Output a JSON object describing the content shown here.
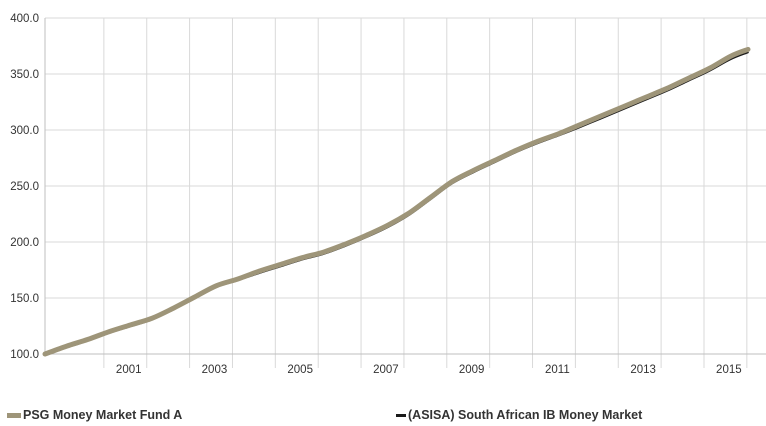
{
  "chart_data": {
    "type": "line",
    "x_ticks": [
      "2001",
      "2003",
      "2005",
      "2007",
      "2009",
      "2011",
      "2013",
      "2015"
    ],
    "y_ticks": [
      "100.0",
      "150.0",
      "200.0",
      "250.0",
      "300.0",
      "350.0",
      "400.0"
    ],
    "ylim": [
      100,
      400
    ],
    "xlim": [
      1999.0,
      2015.4
    ],
    "grid": "on",
    "legend_position": "bottom",
    "series": [
      {
        "name": "PSG Money Market Fund A",
        "color": "#9e9579",
        "x": [
          1999.0,
          1999.5,
          2000.0,
          2000.5,
          2001.0,
          2001.5,
          2002.0,
          2002.5,
          2003.0,
          2003.5,
          2004.0,
          2004.5,
          2005.0,
          2005.5,
          2006.0,
          2006.5,
          2007.0,
          2007.5,
          2008.0,
          2008.5,
          2009.0,
          2009.5,
          2010.0,
          2010.5,
          2011.0,
          2011.5,
          2012.0,
          2012.5,
          2013.0,
          2013.5,
          2014.0,
          2014.5,
          2015.0,
          2015.4
        ],
        "values": [
          100,
          107,
          113,
          120,
          126,
          132,
          141,
          151,
          161,
          167,
          174,
          180,
          186,
          191,
          198,
          206,
          215,
          226,
          240,
          254,
          264,
          273,
          282,
          290,
          297,
          305,
          313,
          321,
          329,
          337,
          346,
          355,
          366,
          372
        ]
      },
      {
        "name": "(ASISA) South African IB Money Market",
        "color": "#1a1a1a",
        "x": [
          1999.0,
          1999.5,
          2000.0,
          2000.5,
          2001.0,
          2001.5,
          2002.0,
          2002.5,
          2003.0,
          2003.5,
          2004.0,
          2004.5,
          2005.0,
          2005.5,
          2006.0,
          2006.5,
          2007.0,
          2007.5,
          2008.0,
          2008.5,
          2009.0,
          2009.5,
          2010.0,
          2010.5,
          2011.0,
          2011.5,
          2012.0,
          2012.5,
          2013.0,
          2013.5,
          2014.0,
          2014.5,
          2015.0,
          2015.4
        ],
        "values": [
          100,
          107,
          113,
          120,
          126,
          132,
          141,
          151,
          161,
          167,
          173.5,
          179.5,
          185.5,
          190.5,
          197.5,
          205.5,
          214.5,
          225.5,
          239.5,
          253.5,
          263.5,
          272.5,
          281.5,
          289.5,
          296.5,
          304,
          312,
          320,
          328,
          336,
          345,
          354,
          364.5,
          370.5
        ]
      }
    ]
  }
}
